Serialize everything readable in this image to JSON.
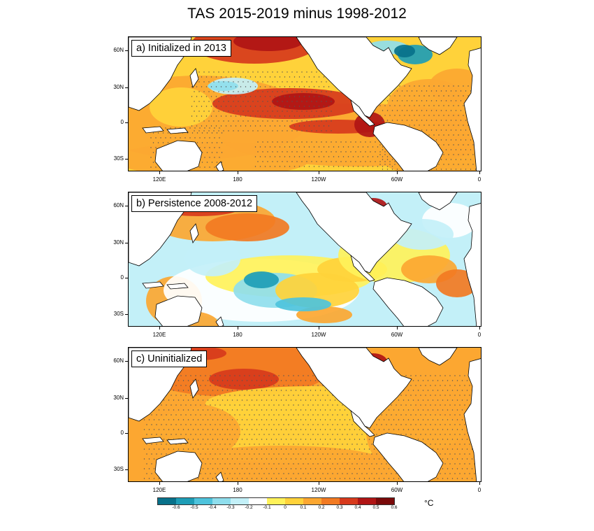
{
  "title": "TAS 2015-2019 minus 1998-2012",
  "panels": [
    {
      "label": "a) Initialized in 2013",
      "scheme": "a"
    },
    {
      "label": "b) Persistence 2008-2012",
      "scheme": "b"
    },
    {
      "label": "c) Uninitialized",
      "scheme": "c"
    }
  ],
  "lat_ticks": [
    "60N",
    "30N",
    "0",
    "30S"
  ],
  "lon_ticks": [
    "120E",
    "180",
    "120W",
    "60W",
    "0"
  ],
  "colorbar": {
    "labels": [
      "-0.6",
      "-0.5",
      "-0.4",
      "-0.3",
      "-0.2",
      "-0.1",
      "0",
      "0.1",
      "0.2",
      "0.3",
      "0.4",
      "0.5",
      "0.6"
    ],
    "colors": [
      "#08718a",
      "#1e9db6",
      "#4ec3dc",
      "#8fdeed",
      "#c3f0f8",
      "#ffffff",
      "#fff25a",
      "#ffd23a",
      "#fca731",
      "#f27a22",
      "#d73a1c",
      "#b01515",
      "#7a0a0a"
    ],
    "unit": "°C"
  },
  "colors": {
    "land": "#ffffff",
    "coast": "#000000",
    "stipple": "#555555"
  }
}
